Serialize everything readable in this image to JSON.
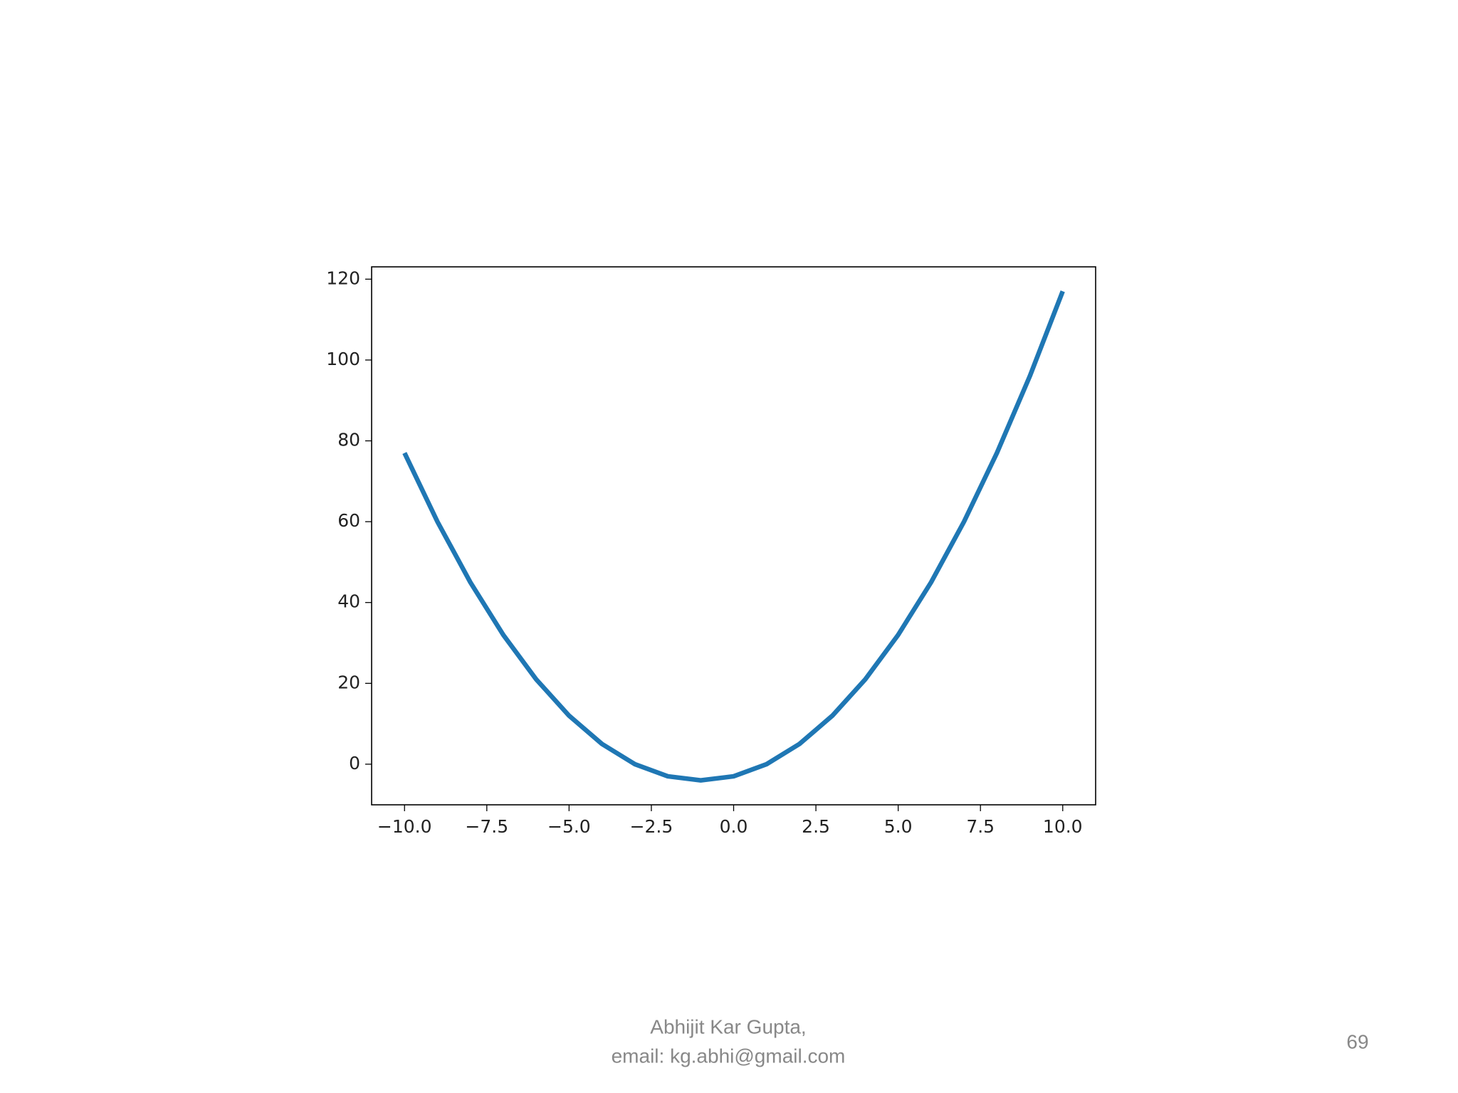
{
  "chart_data": {
    "type": "line",
    "x": [
      -10,
      -9,
      -8,
      -7,
      -6,
      -5,
      -4,
      -3,
      -2,
      -1,
      0,
      1,
      2,
      3,
      4,
      5,
      6,
      7,
      8,
      9,
      10
    ],
    "series": [
      {
        "color": "#1f77b4",
        "values": [
          77,
          60,
          45,
          32,
          21,
          12,
          5,
          0,
          -3,
          -4,
          -3,
          0,
          5,
          12,
          21,
          32,
          45,
          60,
          77,
          96,
          117
        ]
      }
    ],
    "xlim": [
      -11,
      11
    ],
    "xticks": [
      {
        "value": -10,
        "label": "−10.0"
      },
      {
        "value": -7.5,
        "label": "−7.5"
      },
      {
        "value": -5,
        "label": "−5.0"
      },
      {
        "value": -2.5,
        "label": "−2.5"
      },
      {
        "value": 0,
        "label": "0.0"
      },
      2.5,
      {
        "value": 5,
        "label": "5.0"
      },
      7.5,
      {
        "value": 10,
        "label": "10.0"
      }
    ],
    "ylim": [
      -10.05,
      123.05
    ],
    "yticks": [
      0,
      20,
      40,
      60,
      80,
      100,
      120
    ],
    "grid": false
  },
  "footer": {
    "author": "Abhijit Kar Gupta,",
    "email": "email: kg.abhi@gmail.com",
    "page_number": "69"
  }
}
